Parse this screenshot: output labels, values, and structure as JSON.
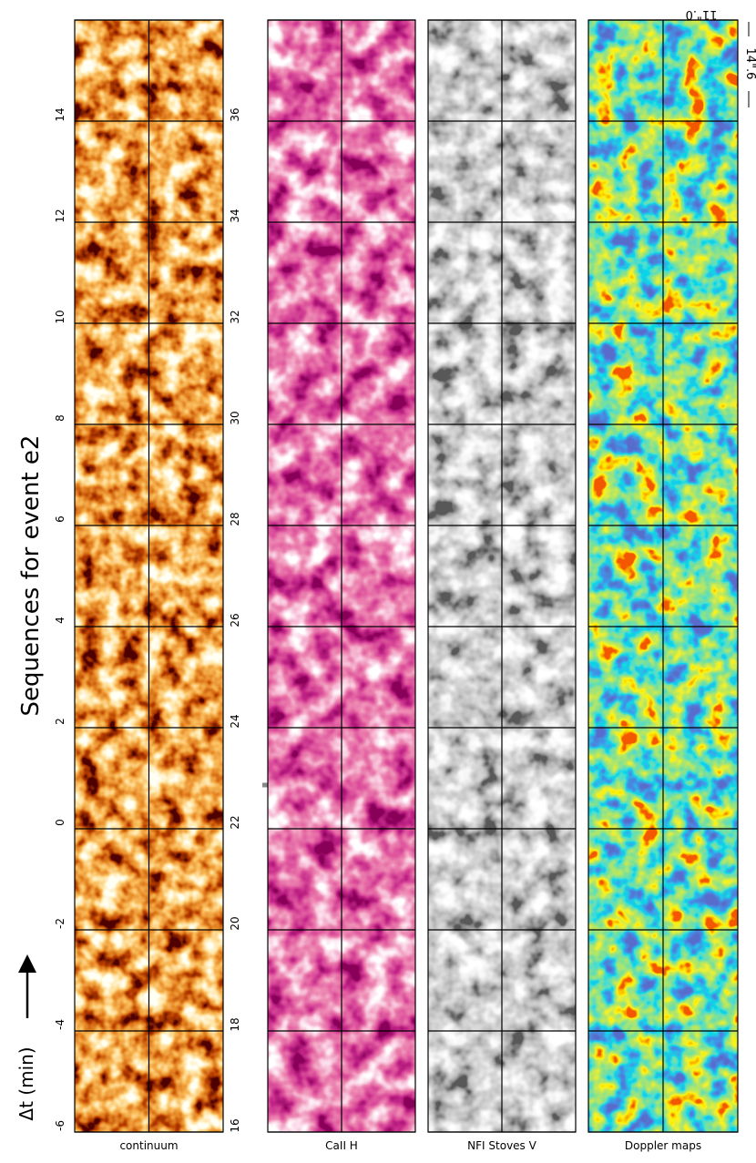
{
  "title": "Sequences for event e2",
  "time_axis_label": "Δt (min)",
  "left_labels": [
    "-6",
    "-4",
    "-2",
    "0",
    "2",
    "4",
    "6",
    "8",
    "10",
    "12",
    "14"
  ],
  "right_labels": [
    "16",
    "18",
    "20",
    "22",
    "24",
    "26",
    "28",
    "30",
    "32",
    "34",
    "36"
  ],
  "columns": [
    "continuum",
    "CaII H",
    "NFI Stoves V",
    "Doppler maps"
  ],
  "scale": {
    "height": "14\".6",
    "width": "11\".0"
  }
}
